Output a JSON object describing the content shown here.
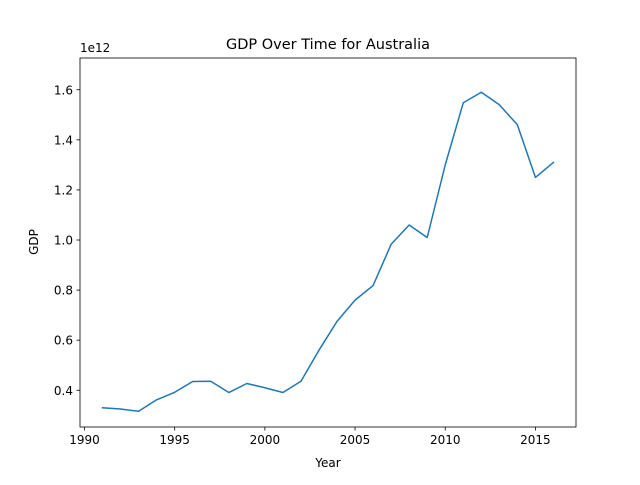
{
  "chart_data": {
    "type": "line",
    "title": "GDP Over Time for Australia",
    "xlabel": "Year",
    "ylabel": "GDP",
    "y_offset_text": "1e12",
    "xlim": [
      1989.75,
      2017.25
    ],
    "ylim": [
      0.2533,
      1.7268
    ],
    "x_ticks": [
      1990,
      1995,
      2000,
      2005,
      2010,
      2015
    ],
    "x_tick_labels": [
      "1990",
      "1995",
      "2000",
      "2005",
      "2010",
      "2015"
    ],
    "y_ticks": [
      0.4,
      0.6,
      0.8,
      1.0,
      1.2,
      1.4,
      1.6
    ],
    "y_tick_labels": [
      "0.4",
      "0.6",
      "0.8",
      "1.0",
      "1.2",
      "1.4",
      "1.6"
    ],
    "grid": false,
    "series": [
      {
        "color": "#1f77b4",
        "x": [
          1991,
          1992,
          1993,
          1994,
          1995,
          1996,
          1997,
          1998,
          1999,
          2000,
          2001,
          2002,
          2003,
          2004,
          2005,
          2006,
          2007,
          2008,
          2009,
          2010,
          2011,
          2012,
          2013,
          2014,
          2015,
          2016
        ],
        "y": [
          0.33,
          0.325,
          0.316,
          0.362,
          0.392,
          0.435,
          0.436,
          0.391,
          0.427,
          0.41,
          0.391,
          0.436,
          0.56,
          0.675,
          0.76,
          0.818,
          0.983,
          1.06,
          1.01,
          1.3,
          1.548,
          1.59,
          1.54,
          1.46,
          1.25,
          1.31
        ]
      }
    ]
  }
}
